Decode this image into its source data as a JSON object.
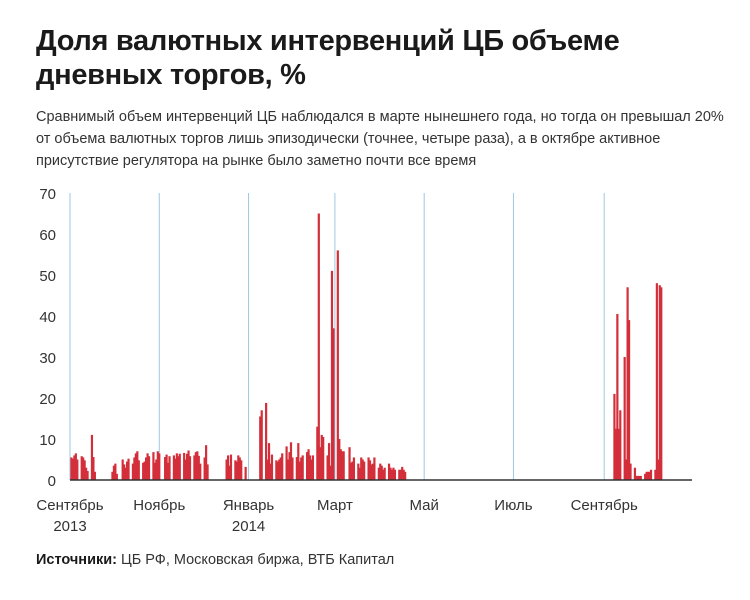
{
  "title": "Доля валютных интервенций ЦБ объеме дневных торгов, %",
  "subtitle": "Сравнимый объем интервенций ЦБ наблюдался в марте нынешнего года, но тогда он превышал 20% от объема валютных торгов лишь эпизодически (точнее, четыре раза), а в октябре активное присутствие регулятора на рынке было заметно почти все время",
  "source_label": "Источники:",
  "source_text": "ЦБ РФ, Московская биржа, ВТБ Капитал",
  "colors": {
    "bar": "#d32f3a",
    "grid": "#9ec7e3",
    "axis": "#333333"
  },
  "chart_data": {
    "type": "bar",
    "title": "Доля валютных интервенций ЦБ объеме дневных торгов, %",
    "xlabel": "",
    "ylabel": "",
    "ylim": [
      0,
      70
    ],
    "y_ticks": [
      0,
      10,
      20,
      30,
      40,
      50,
      60,
      70
    ],
    "x_ticks": [
      {
        "date": "2013-09-01",
        "label": "Сентябрь",
        "sublabel": "2013"
      },
      {
        "date": "2013-11-01",
        "label": "Ноябрь",
        "sublabel": ""
      },
      {
        "date": "2014-01-01",
        "label": "Январь",
        "sublabel": "2014"
      },
      {
        "date": "2014-03-01",
        "label": "Март",
        "sublabel": ""
      },
      {
        "date": "2014-05-01",
        "label": "Май",
        "sublabel": ""
      },
      {
        "date": "2014-07-01",
        "label": "Июль",
        "sublabel": ""
      },
      {
        "date": "2014-09-01",
        "label": "Сентябрь",
        "sublabel": ""
      }
    ],
    "x_range": [
      "2013-09-01",
      "2014-10-31"
    ],
    "grid": {
      "vertical": true,
      "horizontal": false
    },
    "series": [
      {
        "x": [
          "2013-09-02",
          "2013-09-03",
          "2013-09-04",
          "2013-09-05",
          "2013-09-06",
          "2013-09-09",
          "2013-09-10",
          "2013-09-11",
          "2013-09-12",
          "2013-09-13",
          "2013-09-16",
          "2013-09-17",
          "2013-09-18",
          "2013-09-30",
          "2013-10-01",
          "2013-10-02",
          "2013-10-03",
          "2013-10-07",
          "2013-10-08",
          "2013-10-09",
          "2013-10-10",
          "2013-10-11",
          "2013-10-14",
          "2013-10-15",
          "2013-10-16",
          "2013-10-17",
          "2013-10-18",
          "2013-10-21",
          "2013-10-22",
          "2013-10-23",
          "2013-10-24",
          "2013-10-25",
          "2013-10-28",
          "2013-10-29",
          "2013-10-30",
          "2013-10-31",
          "2013-11-01",
          "2013-11-05",
          "2013-11-06",
          "2013-11-07",
          "2013-11-08",
          "2013-11-11",
          "2013-11-12",
          "2013-11-13",
          "2013-11-14",
          "2013-11-15",
          "2013-11-18",
          "2013-11-19",
          "2013-11-20",
          "2013-11-21",
          "2013-11-22",
          "2013-11-25",
          "2013-11-26",
          "2013-11-27",
          "2013-11-28",
          "2013-11-29",
          "2013-12-02",
          "2013-12-03",
          "2013-12-04",
          "2013-12-17",
          "2013-12-18",
          "2013-12-19",
          "2013-12-20",
          "2013-12-23",
          "2013-12-24",
          "2013-12-25",
          "2013-12-26",
          "2013-12-27",
          "2013-12-30",
          "2014-01-09",
          "2014-01-10",
          "2014-01-13",
          "2014-01-14",
          "2014-01-15",
          "2014-01-16",
          "2014-01-17",
          "2014-01-20",
          "2014-01-21",
          "2014-01-22",
          "2014-01-23",
          "2014-01-24",
          "2014-01-27",
          "2014-01-28",
          "2014-01-29",
          "2014-01-30",
          "2014-01-31",
          "2014-02-03",
          "2014-02-04",
          "2014-02-05",
          "2014-02-06",
          "2014-02-07",
          "2014-02-10",
          "2014-02-11",
          "2014-02-12",
          "2014-02-13",
          "2014-02-14",
          "2014-02-17",
          "2014-02-18",
          "2014-02-19",
          "2014-02-20",
          "2014-02-21",
          "2014-02-24",
          "2014-02-25",
          "2014-02-26",
          "2014-02-27",
          "2014-02-28",
          "2014-03-03",
          "2014-03-04",
          "2014-03-05",
          "2014-03-06",
          "2014-03-07",
          "2014-03-11",
          "2014-03-12",
          "2014-03-13",
          "2014-03-14",
          "2014-03-17",
          "2014-03-18",
          "2014-03-19",
          "2014-03-20",
          "2014-03-21",
          "2014-03-24",
          "2014-03-25",
          "2014-03-26",
          "2014-03-27",
          "2014-03-28",
          "2014-03-31",
          "2014-04-01",
          "2014-04-02",
          "2014-04-03",
          "2014-04-04",
          "2014-04-07",
          "2014-04-08",
          "2014-04-09",
          "2014-04-10",
          "2014-04-11",
          "2014-04-14",
          "2014-04-15",
          "2014-04-16",
          "2014-04-17",
          "2014-04-18",
          "2014-09-08",
          "2014-09-09",
          "2014-09-10",
          "2014-09-11",
          "2014-09-12",
          "2014-09-15",
          "2014-09-16",
          "2014-09-17",
          "2014-09-18",
          "2014-09-19",
          "2014-09-22",
          "2014-09-23",
          "2014-09-24",
          "2014-09-25",
          "2014-09-26",
          "2014-09-29",
          "2014-09-30",
          "2014-10-01",
          "2014-10-02",
          "2014-10-03",
          "2014-10-06",
          "2014-10-07",
          "2014-10-08",
          "2014-10-09",
          "2014-10-10"
        ],
        "values": [
          5.5,
          5.2,
          6.0,
          6.5,
          5.0,
          5.8,
          5.5,
          4.8,
          3.0,
          2.2,
          11.0,
          5.6,
          2.0,
          2.0,
          3.5,
          4.0,
          1.5,
          5.0,
          3.8,
          3.0,
          4.5,
          5.2,
          4.0,
          5.5,
          6.5,
          7.0,
          4.8,
          4.2,
          4.5,
          5.5,
          6.5,
          5.8,
          6.8,
          4.2,
          5.0,
          7.0,
          6.5,
          5.6,
          6.2,
          4.2,
          5.8,
          6.0,
          5.2,
          6.5,
          5.8,
          6.4,
          6.6,
          5.0,
          6.4,
          7.2,
          5.8,
          6.0,
          6.8,
          7.0,
          5.9,
          4.0,
          5.5,
          8.5,
          3.8,
          5.0,
          6.0,
          3.5,
          6.2,
          4.8,
          4.5,
          6.0,
          5.5,
          4.8,
          3.2,
          15.5,
          17.0,
          18.8,
          5.0,
          9.0,
          4.0,
          6.2,
          4.8,
          4.5,
          5.0,
          5.5,
          6.5,
          8.2,
          5.0,
          6.8,
          9.2,
          5.5,
          5.6,
          9.0,
          4.5,
          5.5,
          6.0,
          6.8,
          7.5,
          6.0,
          5.0,
          6.0,
          13.0,
          65.0,
          8.0,
          11.0,
          10.5,
          6.0,
          9.0,
          3.5,
          51.0,
          37.0,
          56.0,
          10.0,
          7.5,
          7.0,
          7.0,
          8.0,
          4.2,
          4.5,
          5.5,
          4.0,
          3.0,
          5.5,
          5.0,
          4.5,
          5.5,
          4.8,
          3.8,
          4.0,
          5.5,
          3.0,
          4.0,
          3.5,
          2.5,
          3.0,
          4.0,
          3.0,
          2.5,
          3.0,
          2.5,
          2.5,
          2.5,
          3.2,
          2.5,
          2.0,
          21.0,
          12.5,
          40.5,
          12.5,
          17.0,
          30.0,
          5.0,
          47.0,
          39.0,
          4.0,
          3.0,
          1.0,
          1.0,
          1.0,
          1.0,
          1.5,
          2.0,
          2.0,
          2.0,
          2.5,
          2.5,
          48.0,
          5.0,
          47.5,
          47.0
        ]
      }
    ]
  }
}
